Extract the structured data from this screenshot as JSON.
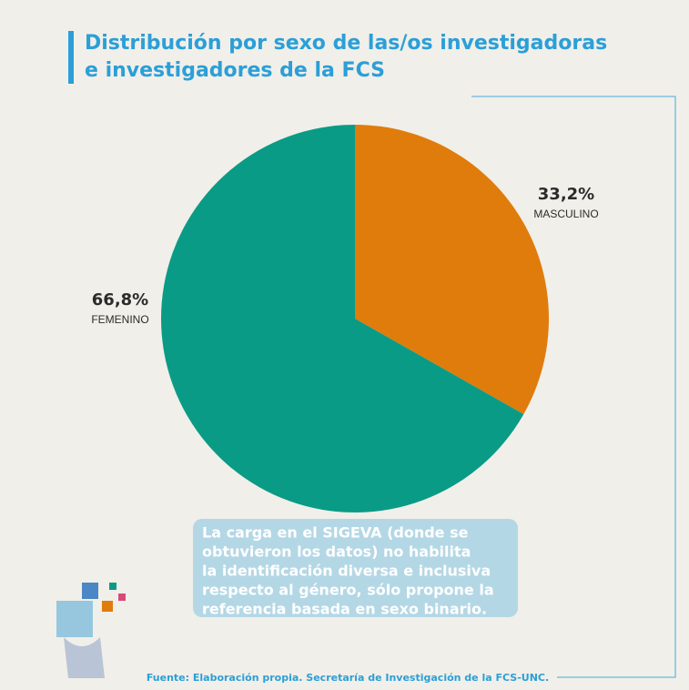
{
  "chart_data": {
    "type": "pie",
    "title_lines": [
      "Distribución por sexo de las/os investigadoras",
      "e investigadores de la FCS"
    ],
    "categories": [
      "MASCULINO",
      "FEMENINO"
    ],
    "values": [
      33.2,
      66.8
    ],
    "value_labels": [
      "33,2%",
      "66,8%"
    ],
    "colors": [
      "#e07c0c",
      "#0a9b86"
    ],
    "note_lines": [
      "La carga en el SIGEVA (donde se",
      "obtuvieron los datos) no habilita",
      "la identificación diversa e inclusiva",
      "respecto al género, sólo propone la",
      "referencia basada en sexo binario."
    ],
    "source": "Fuente: Elaboración propia. Secretaría de Investigación de la FCS-UNC."
  }
}
